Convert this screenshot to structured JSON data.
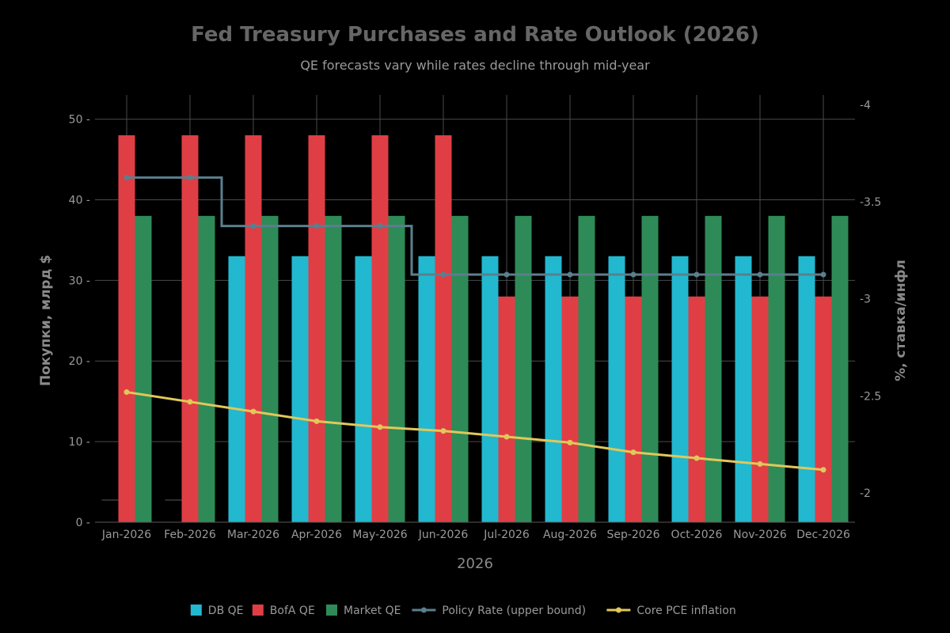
{
  "chart_data": {
    "type": "bar",
    "title": "Fed Treasury Purchases and Rate Outlook (2026)",
    "subtitle": "QE forecasts vary while rates decline through mid-year",
    "xlabel": "2026",
    "ylabel": "Покупки, млрд $",
    "y2label": "%, ставка/инфл",
    "categories": [
      "Jan-2026",
      "Feb-2026",
      "Mar-2026",
      "Apr-2026",
      "May-2026",
      "Jun-2026",
      "Jul-2026",
      "Aug-2026",
      "Sep-2026",
      "Oct-2026",
      "Nov-2026",
      "Dec-2026"
    ],
    "ylim": [
      0,
      53
    ],
    "y2lim": [
      1.85,
      4.05
    ],
    "yticks": [
      0,
      10,
      20,
      30,
      40,
      50
    ],
    "y2ticks": [
      2,
      2.5,
      3,
      3.5,
      4
    ],
    "y2ticklabels": [
      "-2",
      "-2.5",
      "-3",
      "-3.5",
      "-4"
    ],
    "ytick_suffix": " -",
    "bar_series": [
      {
        "name": "DB QE",
        "color": "#22b8cf",
        "values": [
          0,
          0,
          33,
          33,
          33,
          33,
          33,
          33,
          33,
          33,
          33,
          33
        ]
      },
      {
        "name": "BofA QE",
        "color": "#e03e45",
        "values": [
          48,
          48,
          48,
          48,
          48,
          48,
          28,
          28,
          28,
          28,
          28,
          28
        ]
      },
      {
        "name": "Market QE",
        "color": "#2e8b57",
        "values": [
          38,
          38,
          38,
          38,
          38,
          38,
          38,
          38,
          38,
          38,
          38,
          38
        ]
      }
    ],
    "line_series": [
      {
        "name": "Policy Rate (upper bound)",
        "color": "#5b7f8c",
        "axis": "y2",
        "step": true,
        "values": [
          3.625,
          3.625,
          3.375,
          3.375,
          3.375,
          3.125,
          3.125,
          3.125,
          3.125,
          3.125,
          3.125,
          3.125
        ]
      },
      {
        "name": "Core PCE inflation",
        "color": "#e0c85a",
        "axis": "y2",
        "step": false,
        "values": [
          2.52,
          2.47,
          2.42,
          2.37,
          2.34,
          2.32,
          2.29,
          2.26,
          2.21,
          2.18,
          2.15,
          2.12
        ]
      }
    ],
    "grid": true,
    "legend_position": "bottom"
  }
}
